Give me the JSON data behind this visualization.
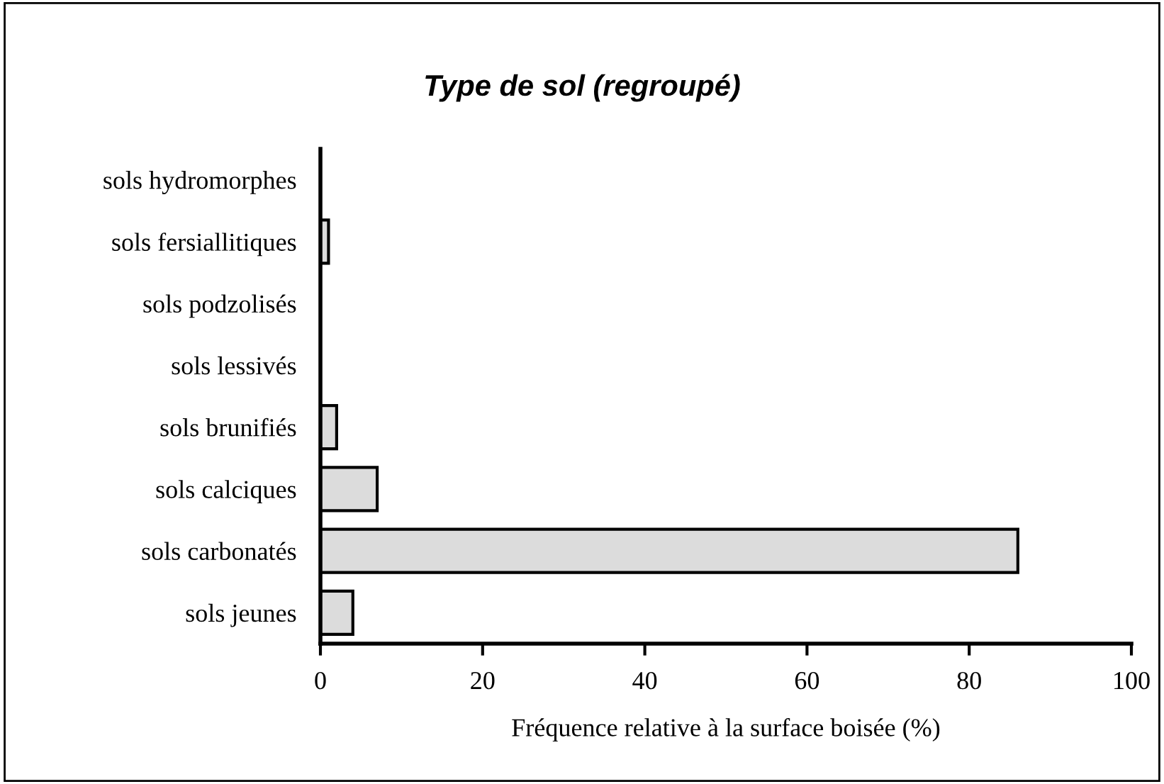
{
  "chart_data": {
    "type": "bar",
    "orientation": "horizontal",
    "title": "Type de sol (regroupé)",
    "xlabel": "Fréquence relative à la surface boisée (%)",
    "categories": [
      "sols hydromorphes",
      "sols fersiallitiques",
      "sols podzolisés",
      "sols lessivés",
      "sols brunifiés",
      "sols calciques",
      "sols carbonatés",
      "sols jeunes"
    ],
    "values": [
      0,
      1,
      0,
      0,
      2,
      7,
      86,
      4
    ],
    "color": "#dcdcdc",
    "xlim": [
      0,
      100
    ],
    "xticks": [
      0,
      20,
      40,
      60,
      80,
      100
    ],
    "grid": false,
    "legend": false
  }
}
